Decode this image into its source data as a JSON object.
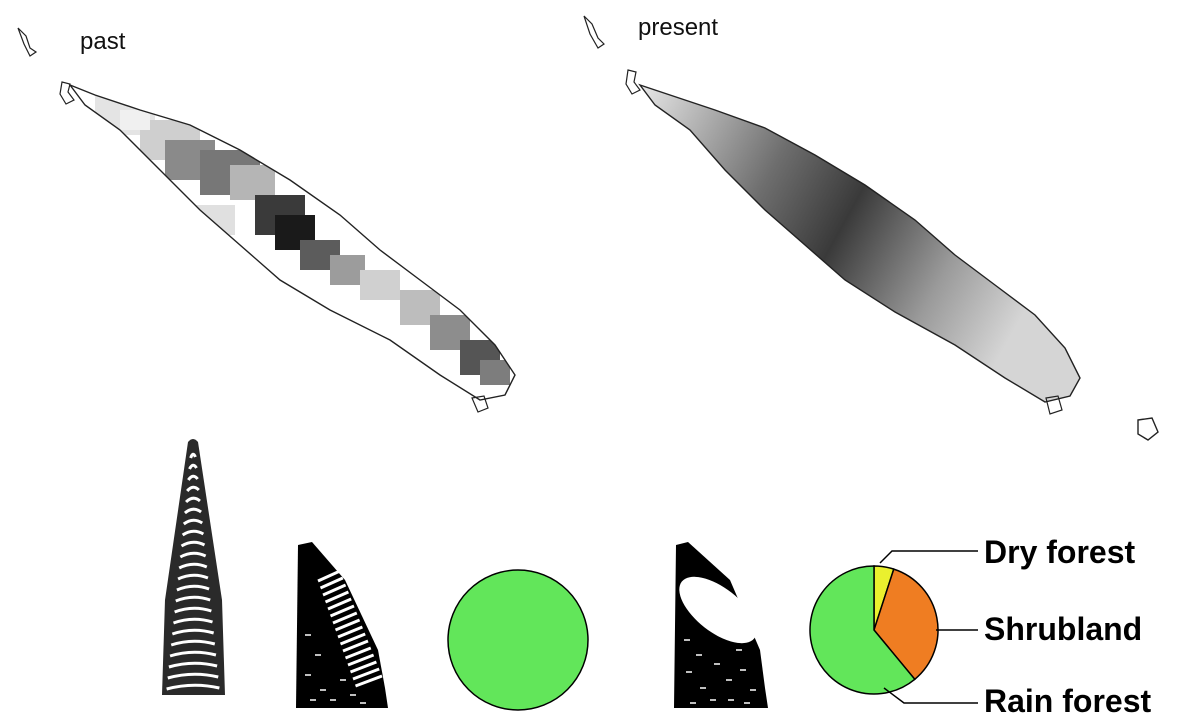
{
  "panels": {
    "past": {
      "label": "past"
    },
    "present": {
      "label": "present"
    }
  },
  "colors": {
    "rain_forest": "#62e65a",
    "shrubland": "#ef7d22",
    "dry_forest": "#eaf02e"
  },
  "chart_data": [
    {
      "type": "pie",
      "slices": [
        {
          "name": "",
          "value": 100,
          "color": "#62e65a"
        }
      ]
    },
    {
      "type": "pie",
      "slices": [
        {
          "name": "Dry forest",
          "value": 5,
          "color": "#eaf02e"
        },
        {
          "name": "Shrubland",
          "value": 34,
          "color": "#ef7d22"
        },
        {
          "name": "Rain forest",
          "value": 61,
          "color": "#62e65a"
        }
      ],
      "legend": "right"
    }
  ],
  "legend": {
    "dry_forest": "Dry forest",
    "shrubland": "Shrubland",
    "rain_forest": "Rain forest"
  },
  "icons": {
    "past_cone": "striped-cone-icon",
    "past_cross_section": "striped-cross-section-icon",
    "present_cross_section": "hollow-cross-section-icon"
  }
}
